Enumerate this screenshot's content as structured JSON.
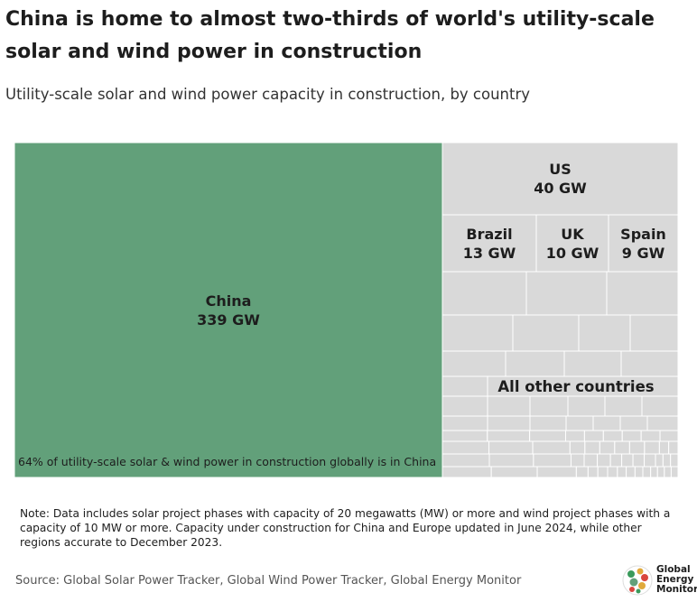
{
  "header": {
    "title": "China is home to almost two-thirds of world's utility-scale solar and wind power in construction",
    "subtitle": "Utility-scale solar and wind power capacity in construction, by country"
  },
  "chart_data": {
    "type": "treemap",
    "unit": "GW",
    "items": [
      {
        "name": "China",
        "label": "China",
        "value_label": "339 GW",
        "value": 339,
        "color": "#62a07a"
      },
      {
        "name": "US",
        "label": "US",
        "value_label": "40 GW",
        "value": 40,
        "color": "#d9d9d9"
      },
      {
        "name": "Brazil",
        "label": "Brazil",
        "value_label": "13 GW",
        "value": 13,
        "color": "#d9d9d9"
      },
      {
        "name": "UK",
        "label": "UK",
        "value_label": "10 GW",
        "value": 10,
        "color": "#d9d9d9"
      },
      {
        "name": "Spain",
        "label": "Spain",
        "value_label": "9 GW",
        "value": 9,
        "color": "#d9d9d9"
      },
      {
        "name": "All other countries",
        "label": "All other countries",
        "value_label": "",
        "color": "#d9d9d9"
      }
    ],
    "annotation": "64% of utility-scale solar & wind power in construction globally is in China"
  },
  "footer": {
    "note": "Note: Data includes solar project phases with capacity of 20 megawatts (MW) or more and wind project phases with a capacity of 10 MW or more. Capacity under construction for China and Europe updated in June 2024, while other regions accurate to December 2023.",
    "source": "Source: Global Solar Power Tracker, Global Wind Power Tracker, Global Energy Monitor",
    "logo_text": [
      "Global",
      "Energy",
      "Monitor"
    ]
  },
  "colors": {
    "china": "#62a07a",
    "other": "#d9d9d9",
    "border": "#ffffff"
  }
}
